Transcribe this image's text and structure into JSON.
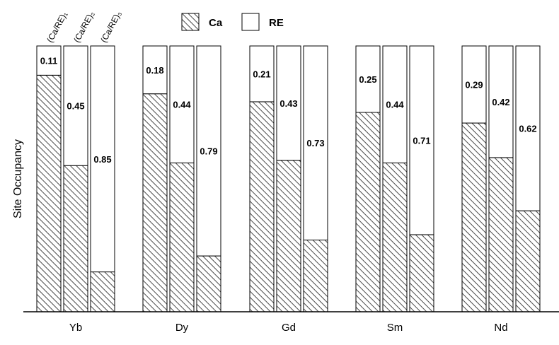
{
  "chart_data": {
    "type": "bar",
    "stacked": true,
    "title": "",
    "xlabel": "",
    "ylabel": "Site Occupancy",
    "ylim": [
      0,
      1
    ],
    "grid": false,
    "legend_placement": "top-center",
    "categories": [
      "Yb",
      "Dy",
      "Gd",
      "Sm",
      "Nd"
    ],
    "sites": [
      "(Ca/RE)₁",
      "(Ca/RE)₂",
      "(Ca/RE)₃"
    ],
    "series": [
      {
        "name": "Ca",
        "pattern": "hatched",
        "color": "#555555",
        "values": [
          [
            0.89,
            0.55,
            0.15
          ],
          [
            0.82,
            0.56,
            0.21
          ],
          [
            0.79,
            0.57,
            0.27
          ],
          [
            0.75,
            0.56,
            0.29
          ],
          [
            0.71,
            0.58,
            0.38
          ]
        ]
      },
      {
        "name": "RE",
        "pattern": "none",
        "color": "#ffffff",
        "values": [
          [
            0.11,
            0.45,
            0.85
          ],
          [
            0.18,
            0.44,
            0.79
          ],
          [
            0.21,
            0.43,
            0.73
          ],
          [
            0.25,
            0.44,
            0.71
          ],
          [
            0.29,
            0.42,
            0.62
          ]
        ]
      }
    ],
    "data_labels": [
      [
        "0.11",
        "0.45",
        "0.85"
      ],
      [
        "0.18",
        "0.44",
        "0.79"
      ],
      [
        "0.21",
        "0.43",
        "0.73"
      ],
      [
        "0.25",
        "0.44",
        "0.71"
      ],
      [
        "0.29",
        "0.42",
        "0.62"
      ]
    ]
  }
}
